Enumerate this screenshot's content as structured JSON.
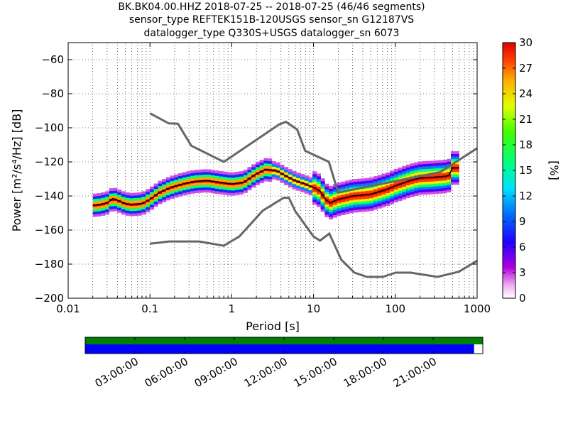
{
  "chart_data": {
    "type": "heatmap",
    "title_lines": [
      "BK.BK04.00.HHZ   2018-07-25 -- 2018-07-25  (46/46 segments)",
      "sensor_type REFTEK151B-120USGS sensor_sn G12187VS",
      "datalogger_type Q330S+USGS datalogger_sn 6073"
    ],
    "xlabel": "Period [s]",
    "ylabel": "Power [m²/s⁴/Hz] [dB]",
    "xscale": "log",
    "xlim": [
      0.01,
      1000
    ],
    "ylim": [
      -200,
      -50
    ],
    "x_ticks": [
      0.01,
      0.1,
      1,
      10,
      100,
      1000
    ],
    "x_tick_labels": [
      "0.01",
      "0.1",
      "1",
      "10",
      "100",
      "1000"
    ],
    "y_ticks": [
      -200,
      -180,
      -160,
      -140,
      -120,
      -100,
      -80,
      -60
    ],
    "y_tick_labels": [
      "−200",
      "−180",
      "−160",
      "−140",
      "−120",
      "−100",
      "−80",
      "−60"
    ],
    "grid": true,
    "colorbar": {
      "label": "[%]",
      "range": [
        0,
        30
      ],
      "ticks": [
        0,
        3,
        6,
        9,
        12,
        15,
        18,
        21,
        24,
        27,
        30
      ],
      "tick_labels": [
        "0",
        "3",
        "6",
        "9",
        "12",
        "15",
        "18",
        "21",
        "24",
        "27",
        "30"
      ]
    },
    "noise_models": [
      {
        "x": [
          0.1,
          0.17,
          0.22,
          0.32,
          0.8,
          3.8,
          4.6,
          6.3,
          7.9,
          15.4,
          20,
          354,
          1000
        ],
        "y": [
          -91.5,
          -97.4,
          -97.6,
          -110.5,
          -120.0,
          -98.0,
          -96.5,
          -101.0,
          -113.5,
          -120.0,
          -138.0,
          -126.0,
          -112.0
        ]
      },
      {
        "x": [
          0.1,
          0.17,
          0.4,
          0.8,
          1.24,
          2.4,
          4.3,
          5.0,
          6.0,
          10,
          12,
          15.6,
          21.9,
          31.6,
          45,
          70,
          101,
          154,
          328,
          600,
          1000
        ],
        "y": [
          -168,
          -166.7,
          -166.7,
          -169.2,
          -163.7,
          -148.6,
          -141.1,
          -141.1,
          -149.0,
          -163.8,
          -166.2,
          -162.1,
          -177.5,
          -185.0,
          -187.5,
          -187.5,
          -185.0,
          -185.0,
          -187.5,
          -184.4,
          -178.0
        ]
      }
    ],
    "mode_line": {
      "x": [
        0.02,
        0.025,
        0.03,
        0.035,
        0.04,
        0.05,
        0.06,
        0.08,
        0.1,
        0.13,
        0.18,
        0.25,
        0.35,
        0.5,
        0.7,
        1.0,
        1.4,
        2.0,
        2.6,
        3.5,
        4.5,
        6,
        8,
        10,
        12,
        14,
        16,
        20,
        30,
        50,
        80,
        100,
        150,
        200,
        300,
        400,
        450,
        500,
        600
      ],
      "y": [
        -145.5,
        -145,
        -144,
        -141.5,
        -142.5,
        -144.5,
        -145,
        -144.5,
        -142,
        -138,
        -135,
        -133,
        -131.5,
        -131,
        -132,
        -133,
        -132,
        -127,
        -124.5,
        -125,
        -128,
        -131,
        -133,
        -135,
        -137,
        -142,
        -144,
        -142,
        -140,
        -139,
        -136,
        -134,
        -131,
        -129.5,
        -129,
        -128.5,
        -128,
        -123.5,
        -123.5
      ]
    },
    "time_axis": {
      "tick_labels": [
        "03:00:00",
        "06:00:00",
        "09:00:00",
        "12:00:00",
        "15:00:00",
        "18:00:00",
        "21:00:00"
      ],
      "data_coverage_fraction": 1.0,
      "psd_coverage_fraction": 0.978
    },
    "colors": {
      "noise_model": "#666666",
      "coverage_green": "#008000",
      "coverage_blue": "#0000ff"
    }
  }
}
